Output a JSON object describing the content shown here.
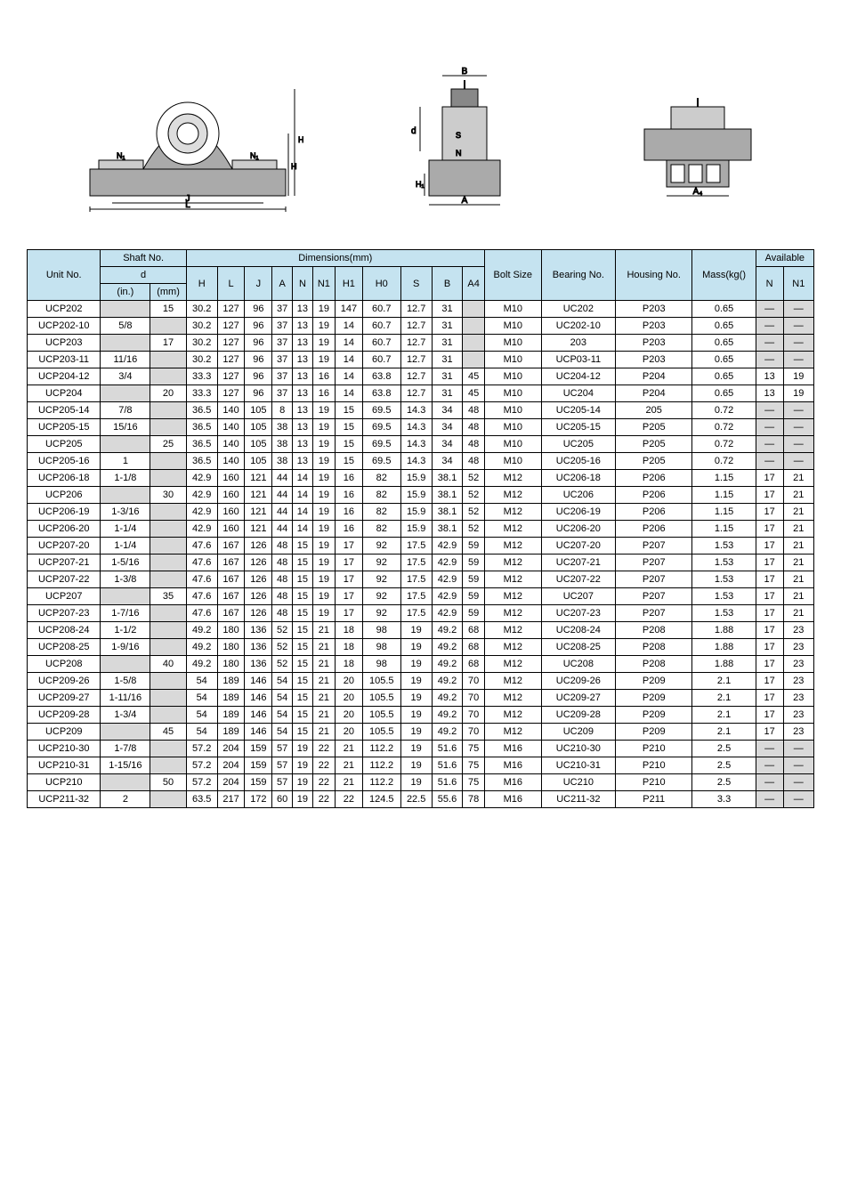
{
  "colors": {
    "header_bg": "#c5e3f0",
    "gray_bg": "#d9d9d9",
    "border": "#000000",
    "page_bg": "#ffffff",
    "text": "#000000"
  },
  "table": {
    "header": {
      "unit_no": "Unit No.",
      "shaft_no": "Shaft No.",
      "d": "d",
      "in": "(in.)",
      "mm": "(mm)",
      "dimensions": "Dimensions(mm)",
      "H": "H",
      "L": "L",
      "J": "J",
      "A": "A",
      "N": "N",
      "N1": "N1",
      "H1": "H1",
      "H0": "H0",
      "S": "S",
      "B": "B",
      "A4": "A4",
      "bolt_size": "Bolt Size",
      "bearing_no": "Bearing No.",
      "housing_no": "Housing No.",
      "mass": "Mass(kg()",
      "available": "Available",
      "av_N": "N",
      "av_N1": "N1"
    },
    "rows": [
      {
        "unit": "UCP202",
        "in": "",
        "mm": "15",
        "H": "30.2",
        "L": "127",
        "J": "96",
        "A": "37",
        "N": "13",
        "N1": "19",
        "H1": "147",
        "H0": "60.7",
        "S": "12.7",
        "B": "31",
        "A4": "",
        "bolt": "M10",
        "bearing": "UC202",
        "housing": "P203",
        "mass": "0.65",
        "avN": "—",
        "avN1": "—",
        "mm_gray": false,
        "A4_gray": true,
        "avN_gray": true,
        "avN1_gray": true
      },
      {
        "unit": "UCP202-10",
        "in": "5/8",
        "mm": "",
        "H": "30.2",
        "L": "127",
        "J": "96",
        "A": "37",
        "N": "13",
        "N1": "19",
        "H1": "14",
        "H0": "60.7",
        "S": "12.7",
        "B": "31",
        "A4": "",
        "bolt": "M10",
        "bearing": "UC202-10",
        "housing": "P203",
        "mass": "0.65",
        "avN": "—",
        "avN1": "—",
        "mm_gray": true,
        "A4_gray": true,
        "avN_gray": true,
        "avN1_gray": true
      },
      {
        "unit": "UCP203",
        "in": "",
        "mm": "17",
        "H": "30.2",
        "L": "127",
        "J": "96",
        "A": "37",
        "N": "13",
        "N1": "19",
        "H1": "14",
        "H0": "60.7",
        "S": "12.7",
        "B": "31",
        "A4": "",
        "bolt": "M10",
        "bearing": "203",
        "housing": "P203",
        "mass": "0.65",
        "avN": "—",
        "avN1": "—",
        "mm_gray": false,
        "A4_gray": true,
        "avN_gray": true,
        "avN1_gray": true
      },
      {
        "unit": "UCP203-11",
        "in": "11/16",
        "mm": "",
        "H": "30.2",
        "L": "127",
        "J": "96",
        "A": "37",
        "N": "13",
        "N1": "19",
        "H1": "14",
        "H0": "60.7",
        "S": "12.7",
        "B": "31",
        "A4": "",
        "bolt": "M10",
        "bearing": "UCP03-11",
        "housing": "P203",
        "mass": "0.65",
        "avN": "—",
        "avN1": "—",
        "mm_gray": true,
        "A4_gray": true,
        "avN_gray": true,
        "avN1_gray": true
      },
      {
        "unit": "UCP204-12",
        "in": "3/4",
        "mm": "",
        "H": "33.3",
        "L": "127",
        "J": "96",
        "A": "37",
        "N": "13",
        "N1": "16",
        "H1": "14",
        "H0": "63.8",
        "S": "12.7",
        "B": "31",
        "A4": "45",
        "bolt": "M10",
        "bearing": "UC204-12",
        "housing": "P204",
        "mass": "0.65",
        "avN": "13",
        "avN1": "19",
        "mm_gray": true,
        "A4_gray": false,
        "avN_gray": false,
        "avN1_gray": false
      },
      {
        "unit": "UCP204",
        "in": "",
        "mm": "20",
        "H": "33.3",
        "L": "127",
        "J": "96",
        "A": "37",
        "N": "13",
        "N1": "16",
        "H1": "14",
        "H0": "63.8",
        "S": "12.7",
        "B": "31",
        "A4": "45",
        "bolt": "M10",
        "bearing": "UC204",
        "housing": "P204",
        "mass": "0.65",
        "avN": "13",
        "avN1": "19",
        "mm_gray": false,
        "A4_gray": false,
        "avN_gray": false,
        "avN1_gray": false
      },
      {
        "unit": "UCP205-14",
        "in": "7/8",
        "mm": "",
        "H": "36.5",
        "L": "140",
        "J": "105",
        "A": "8",
        "N": "13",
        "N1": "19",
        "H1": "15",
        "H0": "69.5",
        "S": "14.3",
        "B": "34",
        "A4": "48",
        "bolt": "M10",
        "bearing": "UC205-14",
        "housing": "205",
        "mass": "0.72",
        "avN": "—",
        "avN1": "—",
        "mm_gray": true,
        "A4_gray": false,
        "avN_gray": true,
        "avN1_gray": true
      },
      {
        "unit": "UCP205-15",
        "in": "15/16",
        "mm": "",
        "H": "36.5",
        "L": "140",
        "J": "105",
        "A": "38",
        "N": "13",
        "N1": "19",
        "H1": "15",
        "H0": "69.5",
        "S": "14.3",
        "B": "34",
        "A4": "48",
        "bolt": "M10",
        "bearing": "UC205-15",
        "housing": "P205",
        "mass": "0.72",
        "avN": "—",
        "avN1": "—",
        "mm_gray": true,
        "A4_gray": false,
        "avN_gray": true,
        "avN1_gray": true
      },
      {
        "unit": "UCP205",
        "in": "",
        "mm": "25",
        "H": "36.5",
        "L": "140",
        "J": "105",
        "A": "38",
        "N": "13",
        "N1": "19",
        "H1": "15",
        "H0": "69.5",
        "S": "14.3",
        "B": "34",
        "A4": "48",
        "bolt": "M10",
        "bearing": "UC205",
        "housing": "P205",
        "mass": "0.72",
        "avN": "—",
        "avN1": "—",
        "mm_gray": false,
        "A4_gray": false,
        "avN_gray": true,
        "avN1_gray": true
      },
      {
        "unit": "UCP205-16",
        "in": "1",
        "mm": "",
        "H": "36.5",
        "L": "140",
        "J": "105",
        "A": "38",
        "N": "13",
        "N1": "19",
        "H1": "15",
        "H0": "69.5",
        "S": "14.3",
        "B": "34",
        "A4": "48",
        "bolt": "M10",
        "bearing": "UC205-16",
        "housing": "P205",
        "mass": "0.72",
        "avN": "—",
        "avN1": "—",
        "mm_gray": true,
        "A4_gray": false,
        "avN_gray": true,
        "avN1_gray": true
      },
      {
        "unit": "UCP206-18",
        "in": "1-1/8",
        "mm": "",
        "H": "42.9",
        "L": "160",
        "J": "121",
        "A": "44",
        "N": "14",
        "N1": "19",
        "H1": "16",
        "H0": "82",
        "S": "15.9",
        "B": "38.1",
        "A4": "52",
        "bolt": "M12",
        "bearing": "UC206-18",
        "housing": "P206",
        "mass": "1.15",
        "avN": "17",
        "avN1": "21",
        "mm_gray": true,
        "A4_gray": false,
        "avN_gray": false,
        "avN1_gray": false
      },
      {
        "unit": "UCP206",
        "in": "",
        "mm": "30",
        "H": "42.9",
        "L": "160",
        "J": "121",
        "A": "44",
        "N": "14",
        "N1": "19",
        "H1": "16",
        "H0": "82",
        "S": "15.9",
        "B": "38.1",
        "A4": "52",
        "bolt": "M12",
        "bearing": "UC206",
        "housing": "P206",
        "mass": "1.15",
        "avN": "17",
        "avN1": "21",
        "mm_gray": false,
        "A4_gray": false,
        "avN_gray": false,
        "avN1_gray": false
      },
      {
        "unit": "UCP206-19",
        "in": "1-3/16",
        "mm": "",
        "H": "42.9",
        "L": "160",
        "J": "121",
        "A": "44",
        "N": "14",
        "N1": "19",
        "H1": "16",
        "H0": "82",
        "S": "15.9",
        "B": "38.1",
        "A4": "52",
        "bolt": "M12",
        "bearing": "UC206-19",
        "housing": "P206",
        "mass": "1.15",
        "avN": "17",
        "avN1": "21",
        "mm_gray": true,
        "A4_gray": false,
        "avN_gray": false,
        "avN1_gray": false
      },
      {
        "unit": "UCP206-20",
        "in": "1-1/4",
        "mm": "",
        "H": "42.9",
        "L": "160",
        "J": "121",
        "A": "44",
        "N": "14",
        "N1": "19",
        "H1": "16",
        "H0": "82",
        "S": "15.9",
        "B": "38.1",
        "A4": "52",
        "bolt": "M12",
        "bearing": "UC206-20",
        "housing": "P206",
        "mass": "1.15",
        "avN": "17",
        "avN1": "21",
        "mm_gray": true,
        "A4_gray": false,
        "avN_gray": false,
        "avN1_gray": false
      },
      {
        "unit": "UCP207-20",
        "in": "1-1/4",
        "mm": "",
        "H": "47.6",
        "L": "167",
        "J": "126",
        "A": "48",
        "N": "15",
        "N1": "19",
        "H1": "17",
        "H0": "92",
        "S": "17.5",
        "B": "42.9",
        "A4": "59",
        "bolt": "M12",
        "bearing": "UC207-20",
        "housing": "P207",
        "mass": "1.53",
        "avN": "17",
        "avN1": "21",
        "mm_gray": true,
        "A4_gray": false,
        "avN_gray": false,
        "avN1_gray": false
      },
      {
        "unit": "UCP207-21",
        "in": "1-5/16",
        "mm": "",
        "H": "47.6",
        "L": "167",
        "J": "126",
        "A": "48",
        "N": "15",
        "N1": "19",
        "H1": "17",
        "H0": "92",
        "S": "17.5",
        "B": "42.9",
        "A4": "59",
        "bolt": "M12",
        "bearing": "UC207-21",
        "housing": "P207",
        "mass": "1.53",
        "avN": "17",
        "avN1": "21",
        "mm_gray": true,
        "A4_gray": false,
        "avN_gray": false,
        "avN1_gray": false
      },
      {
        "unit": "UCP207-22",
        "in": "1-3/8",
        "mm": "",
        "H": "47.6",
        "L": "167",
        "J": "126",
        "A": "48",
        "N": "15",
        "N1": "19",
        "H1": "17",
        "H0": "92",
        "S": "17.5",
        "B": "42.9",
        "A4": "59",
        "bolt": "M12",
        "bearing": "UC207-22",
        "housing": "P207",
        "mass": "1.53",
        "avN": "17",
        "avN1": "21",
        "mm_gray": true,
        "A4_gray": false,
        "avN_gray": false,
        "avN1_gray": false
      },
      {
        "unit": "UCP207",
        "in": "",
        "mm": "35",
        "H": "47.6",
        "L": "167",
        "J": "126",
        "A": "48",
        "N": "15",
        "N1": "19",
        "H1": "17",
        "H0": "92",
        "S": "17.5",
        "B": "42.9",
        "A4": "59",
        "bolt": "M12",
        "bearing": "UC207",
        "housing": "P207",
        "mass": "1.53",
        "avN": "17",
        "avN1": "21",
        "mm_gray": false,
        "A4_gray": false,
        "avN_gray": false,
        "avN1_gray": false
      },
      {
        "unit": "UCP207-23",
        "in": "1-7/16",
        "mm": "",
        "H": "47.6",
        "L": "167",
        "J": "126",
        "A": "48",
        "N": "15",
        "N1": "19",
        "H1": "17",
        "H0": "92",
        "S": "17.5",
        "B": "42.9",
        "A4": "59",
        "bolt": "M12",
        "bearing": "UC207-23",
        "housing": "P207",
        "mass": "1.53",
        "avN": "17",
        "avN1": "21",
        "mm_gray": true,
        "A4_gray": false,
        "avN_gray": false,
        "avN1_gray": false
      },
      {
        "unit": "UCP208-24",
        "in": "1-1/2",
        "mm": "",
        "H": "49.2",
        "L": "180",
        "J": "136",
        "A": "52",
        "N": "15",
        "N1": "21",
        "H1": "18",
        "H0": "98",
        "S": "19",
        "B": "49.2",
        "A4": "68",
        "bolt": "M12",
        "bearing": "UC208-24",
        "housing": "P208",
        "mass": "1.88",
        "avN": "17",
        "avN1": "23",
        "mm_gray": true,
        "A4_gray": false,
        "avN_gray": false,
        "avN1_gray": false
      },
      {
        "unit": "UCP208-25",
        "in": "1-9/16",
        "mm": "",
        "H": "49.2",
        "L": "180",
        "J": "136",
        "A": "52",
        "N": "15",
        "N1": "21",
        "H1": "18",
        "H0": "98",
        "S": "19",
        "B": "49.2",
        "A4": "68",
        "bolt": "M12",
        "bearing": "UC208-25",
        "housing": "P208",
        "mass": "1.88",
        "avN": "17",
        "avN1": "23",
        "mm_gray": true,
        "A4_gray": false,
        "avN_gray": false,
        "avN1_gray": false
      },
      {
        "unit": "UCP208",
        "in": "",
        "mm": "40",
        "H": "49.2",
        "L": "180",
        "J": "136",
        "A": "52",
        "N": "15",
        "N1": "21",
        "H1": "18",
        "H0": "98",
        "S": "19",
        "B": "49.2",
        "A4": "68",
        "bolt": "M12",
        "bearing": "UC208",
        "housing": "P208",
        "mass": "1.88",
        "avN": "17",
        "avN1": "23",
        "mm_gray": false,
        "A4_gray": false,
        "avN_gray": false,
        "avN1_gray": false
      },
      {
        "unit": "UCP209-26",
        "in": "1-5/8",
        "mm": "",
        "H": "54",
        "L": "189",
        "J": "146",
        "A": "54",
        "N": "15",
        "N1": "21",
        "H1": "20",
        "H0": "105.5",
        "S": "19",
        "B": "49.2",
        "A4": "70",
        "bolt": "M12",
        "bearing": "UC209-26",
        "housing": "P209",
        "mass": "2.1",
        "avN": "17",
        "avN1": "23",
        "mm_gray": true,
        "A4_gray": false,
        "avN_gray": false,
        "avN1_gray": false
      },
      {
        "unit": "UCP209-27",
        "in": "1-11/16",
        "mm": "",
        "H": "54",
        "L": "189",
        "J": "146",
        "A": "54",
        "N": "15",
        "N1": "21",
        "H1": "20",
        "H0": "105.5",
        "S": "19",
        "B": "49.2",
        "A4": "70",
        "bolt": "M12",
        "bearing": "UC209-27",
        "housing": "P209",
        "mass": "2.1",
        "avN": "17",
        "avN1": "23",
        "mm_gray": true,
        "A4_gray": false,
        "avN_gray": false,
        "avN1_gray": false
      },
      {
        "unit": "UCP209-28",
        "in": "1-3/4",
        "mm": "",
        "H": "54",
        "L": "189",
        "J": "146",
        "A": "54",
        "N": "15",
        "N1": "21",
        "H1": "20",
        "H0": "105.5",
        "S": "19",
        "B": "49.2",
        "A4": "70",
        "bolt": "M12",
        "bearing": "UC209-28",
        "housing": "P209",
        "mass": "2.1",
        "avN": "17",
        "avN1": "23",
        "mm_gray": true,
        "A4_gray": false,
        "avN_gray": false,
        "avN1_gray": false
      },
      {
        "unit": "UCP209",
        "in": "",
        "mm": "45",
        "H": "54",
        "L": "189",
        "J": "146",
        "A": "54",
        "N": "15",
        "N1": "21",
        "H1": "20",
        "H0": "105.5",
        "S": "19",
        "B": "49.2",
        "A4": "70",
        "bolt": "M12",
        "bearing": "UC209",
        "housing": "P209",
        "mass": "2.1",
        "avN": "17",
        "avN1": "23",
        "mm_gray": false,
        "A4_gray": false,
        "avN_gray": false,
        "avN1_gray": false
      },
      {
        "unit": "UCP210-30",
        "in": "1-7/8",
        "mm": "",
        "H": "57.2",
        "L": "204",
        "J": "159",
        "A": "57",
        "N": "19",
        "N1": "22",
        "H1": "21",
        "H0": "112.2",
        "S": "19",
        "B": "51.6",
        "A4": "75",
        "bolt": "M16",
        "bearing": "UC210-30",
        "housing": "P210",
        "mass": "2.5",
        "avN": "—",
        "avN1": "—",
        "mm_gray": true,
        "A4_gray": false,
        "avN_gray": true,
        "avN1_gray": true
      },
      {
        "unit": "UCP210-31",
        "in": "1-15/16",
        "mm": "",
        "H": "57.2",
        "L": "204",
        "J": "159",
        "A": "57",
        "N": "19",
        "N1": "22",
        "H1": "21",
        "H0": "112.2",
        "S": "19",
        "B": "51.6",
        "A4": "75",
        "bolt": "M16",
        "bearing": "UC210-31",
        "housing": "P210",
        "mass": "2.5",
        "avN": "—",
        "avN1": "—",
        "mm_gray": true,
        "A4_gray": false,
        "avN_gray": true,
        "avN1_gray": true
      },
      {
        "unit": "UCP210",
        "in": "",
        "mm": "50",
        "H": "57.2",
        "L": "204",
        "J": "159",
        "A": "57",
        "N": "19",
        "N1": "22",
        "H1": "21",
        "H0": "112.2",
        "S": "19",
        "B": "51.6",
        "A4": "75",
        "bolt": "M16",
        "bearing": "UC210",
        "housing": "P210",
        "mass": "2.5",
        "avN": "—",
        "avN1": "—",
        "mm_gray": false,
        "A4_gray": false,
        "avN_gray": true,
        "avN1_gray": true
      },
      {
        "unit": "UCP211-32",
        "in": "2",
        "mm": "",
        "H": "63.5",
        "L": "217",
        "J": "172",
        "A": "60",
        "N": "19",
        "N1": "22",
        "H1": "22",
        "H0": "124.5",
        "S": "22.5",
        "B": "55.6",
        "A4": "78",
        "bolt": "M16",
        "bearing": "UC211-32",
        "housing": "P211",
        "mass": "3.3",
        "avN": "—",
        "avN1": "—",
        "mm_gray": true,
        "A4_gray": false,
        "avN_gray": true,
        "avN1_gray": true
      }
    ]
  }
}
